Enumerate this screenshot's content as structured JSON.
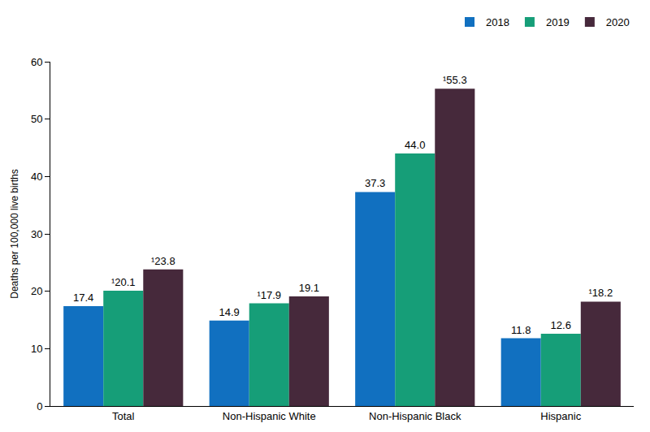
{
  "chart_data": {
    "type": "bar",
    "y_label": "Deaths per 100,000 live births",
    "categories": [
      "Total",
      "Non-Hispanic White",
      "Non-Hispanic Black",
      "Hispanic"
    ],
    "series": [
      {
        "name": "2018",
        "color": "#1170c0",
        "values": [
          17.4,
          14.9,
          37.3,
          11.8
        ],
        "value_labels": [
          "17.4",
          "14.9",
          "37.3",
          "11.8"
        ]
      },
      {
        "name": "2019",
        "color": "#169e78",
        "values": [
          20.1,
          17.9,
          44.0,
          12.6
        ],
        "value_labels": [
          "¹20.1",
          "¹17.9",
          "44.0",
          "12.6"
        ]
      },
      {
        "name": "2020",
        "color": "#46293b",
        "values": [
          23.8,
          19.1,
          55.3,
          18.2
        ],
        "value_labels": [
          "¹23.8",
          "19.1",
          "¹55.3",
          "¹18.2"
        ]
      }
    ],
    "ylim": [
      0,
      60
    ],
    "yticks": [
      0,
      10,
      20,
      30,
      40,
      50,
      60
    ],
    "grid": false,
    "legend": "top right",
    "data_labels": true
  }
}
